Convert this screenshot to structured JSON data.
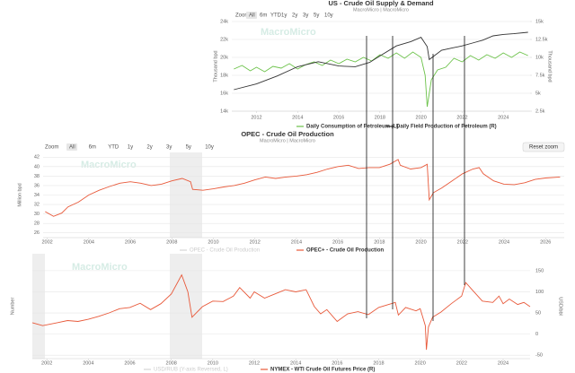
{
  "chart_data": [
    {
      "type": "line",
      "title": "US - Crude Oil Supply & Demand",
      "subtitle": "MacroMicro | MacroMicro",
      "watermark": "MacroMicro",
      "zoom_buttons": [
        "Zoom",
        "All",
        "6m",
        "YTD",
        "1y",
        "2y",
        "3y",
        "5y",
        "10y"
      ],
      "xlim": [
        2010.8,
        2025.3
      ],
      "xticks": [
        2012,
        2014,
        2016,
        2018,
        2020,
        2022,
        2024
      ],
      "ylim": [
        14000,
        24000
      ],
      "yticks": [
        {
          "value": 14000,
          "label": "14k"
        },
        {
          "value": 16000,
          "label": "16k"
        },
        {
          "value": 18000,
          "label": "18k"
        },
        {
          "value": 20000,
          "label": "20k"
        },
        {
          "value": 22000,
          "label": "22k"
        },
        {
          "value": 24000,
          "label": "24k"
        }
      ],
      "y2lim": [
        2500,
        15000
      ],
      "y2ticks": [
        {
          "value": 2500,
          "label": "2.5k"
        },
        {
          "value": 5000,
          "label": "5k"
        },
        {
          "value": 7500,
          "label": "7.5k"
        },
        {
          "value": 10000,
          "label": "10k"
        },
        {
          "value": 12500,
          "label": "12.5k"
        },
        {
          "value": 15000,
          "label": "15k"
        }
      ],
      "ylabel": "Thousand bpd",
      "y2label": "Thousand bpd",
      "grid": true,
      "series": [
        {
          "name": "Daily Consumption of Petroleum (L)",
          "color": "#6cc24a",
          "x": [
            2010.9,
            2011.3,
            2011.7,
            2012.0,
            2012.4,
            2012.8,
            2013.2,
            2013.6,
            2014.0,
            2014.4,
            2014.8,
            2015.2,
            2015.6,
            2016.0,
            2016.4,
            2016.8,
            2017.2,
            2017.6,
            2018.0,
            2018.4,
            2018.8,
            2019.2,
            2019.6,
            2020.0,
            2020.2,
            2020.3,
            2020.5,
            2020.8,
            2021.2,
            2021.6,
            2022.0,
            2022.4,
            2022.8,
            2023.2,
            2023.6,
            2024.0,
            2024.4,
            2024.8,
            2025.2
          ],
          "values": [
            18700,
            19100,
            18500,
            18900,
            18400,
            19000,
            18800,
            19300,
            18700,
            19200,
            19500,
            19100,
            19700,
            19300,
            19800,
            19500,
            20000,
            19600,
            20300,
            19900,
            20500,
            19900,
            20600,
            20000,
            18000,
            14500,
            17500,
            18600,
            18900,
            19900,
            19500,
            20200,
            19700,
            20300,
            19900,
            20500,
            20000,
            20600,
            20200
          ]
        },
        {
          "name": "Daily Field Production of Petroleum (R)",
          "color": "#333333",
          "axis": "y2",
          "x": [
            2010.9,
            2012.0,
            2013.0,
            2014.0,
            2015.0,
            2016.0,
            2016.8,
            2017.5,
            2018.0,
            2018.8,
            2019.5,
            2020.0,
            2020.3,
            2020.4,
            2021.0,
            2021.5,
            2022.0,
            2022.5,
            2023.0,
            2023.5,
            2024.0,
            2024.5,
            2025.2
          ],
          "values": [
            5500,
            6300,
            7400,
            8700,
            9400,
            8800,
            8700,
            9300,
            10200,
            11600,
            12200,
            12800,
            11500,
            9700,
            11000,
            11300,
            11600,
            12000,
            12400,
            13000,
            13200,
            13300,
            13500
          ]
        }
      ]
    },
    {
      "type": "line",
      "title": "OPEC - Crude Oil Production",
      "subtitle": "MacroMicro | MacroMicro",
      "watermark": "MacroMicro",
      "zoom_buttons": [
        "Zoom",
        "All",
        "6m",
        "YTD",
        "1y",
        "2y",
        "3y",
        "5y",
        "10y"
      ],
      "reset_zoom": "Reset zoom",
      "xlim": [
        2001.8,
        2026.9
      ],
      "xticks": [
        2002,
        2004,
        2006,
        2008,
        2010,
        2012,
        2014,
        2016,
        2018,
        2020,
        2022,
        2024,
        2026
      ],
      "ylim": [
        25,
        43
      ],
      "yticks": [
        26,
        28,
        30,
        32,
        34,
        36,
        38,
        40,
        42
      ],
      "ylabel": "Million bpd",
      "grid": true,
      "hidden_series": [
        "OPEC - Crude Oil Production"
      ],
      "series": [
        {
          "name": "OPEC+ - Crude Oil Production",
          "color": "#e8593a",
          "x": [
            2001.9,
            2002.3,
            2002.7,
            2003.0,
            2003.5,
            2004.0,
            2004.5,
            2005.0,
            2005.5,
            2006.0,
            2006.5,
            2007.0,
            2007.5,
            2008.0,
            2008.5,
            2008.9,
            2009.0,
            2009.5,
            2010.0,
            2010.5,
            2011.0,
            2011.5,
            2012.0,
            2012.5,
            2013.0,
            2013.5,
            2014.0,
            2014.5,
            2015.0,
            2015.5,
            2016.0,
            2016.5,
            2017.0,
            2017.5,
            2018.0,
            2018.5,
            2018.9,
            2019.0,
            2019.5,
            2020.0,
            2020.3,
            2020.4,
            2020.6,
            2021.0,
            2021.5,
            2022.0,
            2022.5,
            2022.8,
            2023.0,
            2023.5,
            2024.0,
            2024.5,
            2025.0,
            2025.5,
            2026.0,
            2026.7
          ],
          "values": [
            30.5,
            29.5,
            30.2,
            31.5,
            32.5,
            34.0,
            35.0,
            35.8,
            36.5,
            36.8,
            36.5,
            36.0,
            36.3,
            37.0,
            37.5,
            36.8,
            35.2,
            35.0,
            35.3,
            35.7,
            36.0,
            36.5,
            37.2,
            37.8,
            37.5,
            37.8,
            38.0,
            38.3,
            38.8,
            39.5,
            40.0,
            40.3,
            39.6,
            39.8,
            39.8,
            40.5,
            41.5,
            40.3,
            39.5,
            39.8,
            40.5,
            33.0,
            34.5,
            35.5,
            37.0,
            38.5,
            39.5,
            39.8,
            38.5,
            37.0,
            36.3,
            36.2,
            36.6,
            37.3,
            37.6,
            37.8
          ]
        }
      ]
    },
    {
      "type": "line",
      "watermark": "MacroMicro",
      "xlim": [
        2001.3,
        2025.3
      ],
      "xticks": [
        2002,
        2004,
        2006,
        2008,
        2010,
        2012,
        2014,
        2016,
        2018,
        2020,
        2022,
        2024
      ],
      "y2lim": [
        -58,
        190
      ],
      "y2ticks": [
        -50,
        0,
        50,
        100,
        150
      ],
      "ylabel": "Number",
      "y2label": "USD/bbl",
      "grid": true,
      "hidden_series": [
        "USD/RUB (Y-axis Reversed, L)"
      ],
      "series": [
        {
          "name": "NYMEX - WTI Crude Oil Futures Price (R)",
          "color": "#e8593a",
          "axis": "y2",
          "x": [
            2001.3,
            2001.8,
            2002.5,
            2003.0,
            2003.5,
            2004.0,
            2004.5,
            2005.0,
            2005.5,
            2006.0,
            2006.5,
            2007.0,
            2007.5,
            2008.0,
            2008.5,
            2008.8,
            2009.0,
            2009.5,
            2010.0,
            2010.5,
            2011.0,
            2011.3,
            2011.8,
            2012.0,
            2012.5,
            2013.0,
            2013.5,
            2014.0,
            2014.5,
            2014.9,
            2015.2,
            2015.5,
            2016.0,
            2016.5,
            2017.0,
            2017.5,
            2018.0,
            2018.8,
            2018.95,
            2019.3,
            2019.8,
            2020.0,
            2020.25,
            2020.3,
            2020.4,
            2020.6,
            2021.0,
            2021.5,
            2022.0,
            2022.2,
            2022.5,
            2023.0,
            2023.5,
            2023.8,
            2024.0,
            2024.3,
            2024.7,
            2025.0,
            2025.3
          ],
          "values": [
            27,
            20,
            27,
            32,
            30,
            35,
            42,
            50,
            60,
            63,
            73,
            58,
            72,
            95,
            140,
            100,
            40,
            65,
            78,
            77,
            90,
            110,
            85,
            100,
            85,
            95,
            105,
            100,
            105,
            65,
            48,
            58,
            30,
            48,
            53,
            46,
            63,
            75,
            45,
            63,
            55,
            60,
            20,
            -37,
            17,
            40,
            52,
            72,
            90,
            122,
            105,
            78,
            75,
            90,
            72,
            83,
            70,
            75,
            65
          ]
        }
      ]
    }
  ]
}
